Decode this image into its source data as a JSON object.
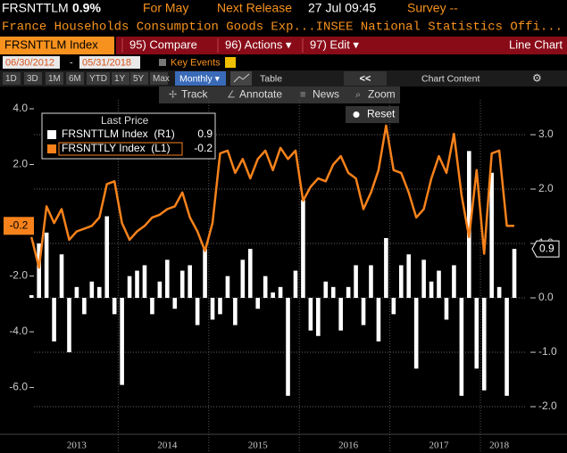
{
  "header": {
    "ticker": "FRSNTTLM",
    "change": "0.9%",
    "period": "For May",
    "next_release_label": "Next Release",
    "next_release": "27 Jul 09:45",
    "survey": "Survey --",
    "description": "France Households Consumption Goods Exp...INSEE National Statistics Offi..."
  },
  "menu": {
    "security": "FRSNTTLM Index",
    "items": [
      "95) Compare",
      "96) Actions ▾",
      "97) Edit ▾"
    ],
    "view": "Line Chart"
  },
  "range": {
    "start": "06/30/2012",
    "separator": "-",
    "end": "05/31/2018",
    "key_events": "Key Events"
  },
  "periods": [
    "1D",
    "3D",
    "1M",
    "6M",
    "YTD",
    "1Y",
    "5Y",
    "Max"
  ],
  "frequency": "Monthly ▾",
  "table": "Table",
  "collapse": "<<",
  "chart_content": "Chart Content",
  "tools": [
    "Track",
    "Annotate",
    "News",
    "Zoom"
  ],
  "reset": "Reset",
  "chart_data": {
    "type": "combo",
    "legend_title": "Last Price",
    "categories": [
      null,
      null,
      null,
      null,
      null,
      null,
      "2013",
      null,
      null,
      null,
      null,
      null,
      null,
      null,
      null,
      null,
      null,
      null,
      "2014",
      null,
      null,
      null,
      null,
      null,
      null,
      null,
      null,
      null,
      null,
      null,
      "2015",
      null,
      null,
      null,
      null,
      null,
      null,
      null,
      null,
      null,
      null,
      null,
      "2016",
      null,
      null,
      null,
      null,
      null,
      null,
      null,
      null,
      null,
      null,
      null,
      "2017",
      null,
      null,
      null,
      null,
      null,
      null,
      null,
      "2018",
      null,
      null
    ],
    "series": [
      {
        "name": "FRSNTTLM Index  (R1)",
        "type": "bar",
        "axis": "y2",
        "color": "#ffffff",
        "last_label": "0.9",
        "values": [
          0.05,
          1.0,
          1.2,
          -0.8,
          0.8,
          -1.0,
          0.2,
          -0.3,
          0.3,
          0.2,
          1.5,
          -0.3,
          -1.6,
          0.4,
          0.5,
          0.6,
          -0.3,
          0.3,
          0.7,
          -0.2,
          0.5,
          0.6,
          -0.5,
          0.9,
          -0.4,
          -0.3,
          0.4,
          -0.5,
          0.7,
          0.9,
          -0.2,
          0.4,
          0.1,
          0.2,
          -1.8,
          0.5,
          1.8,
          -0.6,
          -0.7,
          0.3,
          0.2,
          -0.6,
          0.2,
          0.6,
          -0.5,
          0.6,
          -0.8,
          1.1,
          -0.3,
          0.6,
          0.8,
          -1.3,
          0.7,
          0.3,
          0.5,
          -0.4,
          0.6,
          -1.8,
          2.7,
          -1.3,
          -1.7,
          2.3,
          0.2,
          -1.8,
          0.9
        ]
      },
      {
        "name": "FRSNTTLY Index  (L1)",
        "type": "line",
        "color": "#f7821b",
        "last_label": "-0.2",
        "values": [
          -0.6,
          -1.7,
          0.5,
          -0.1,
          0.4,
          -0.7,
          -0.4,
          -0.3,
          -0.2,
          0.1,
          1.3,
          1.4,
          -0.1,
          -0.7,
          -0.4,
          -0.2,
          0.1,
          0.2,
          0.4,
          0.5,
          1.0,
          0.1,
          -0.4,
          -1.1,
          -0.1,
          2.4,
          2.5,
          1.7,
          2.2,
          1.5,
          2.2,
          2.5,
          1.8,
          2.6,
          2.2,
          2.5,
          0.7,
          1.2,
          1.5,
          1.4,
          2.0,
          2.3,
          1.7,
          1.5,
          0.4,
          1.0,
          1.8,
          3.4,
          1.8,
          1.7,
          1.0,
          0.1,
          0.4,
          1.5,
          2.3,
          1.7,
          3.1,
          0.9,
          -0.6,
          1.8,
          -1.2,
          2.4,
          2.5,
          -0.2,
          -0.2
        ]
      }
    ],
    "ylim": [
      -7.39,
      4.32
    ],
    "yticks": [
      {
        "value": 4,
        "label": "4.0"
      },
      {
        "value": 2,
        "label": "2.0"
      },
      {
        "value": -2,
        "label": "-2.0"
      },
      {
        "value": -4,
        "label": "-4.0"
      },
      {
        "value": -6,
        "label": "-6.0"
      }
    ],
    "y2lim": [
      -2.36,
      3.64
    ],
    "y2ticks": [
      {
        "value": 3,
        "label": "3.0"
      },
      {
        "value": 2,
        "label": "2.0"
      },
      {
        "value": 1,
        "label": "1.0"
      },
      {
        "value": 0,
        "label": "0.0"
      },
      {
        "value": -1,
        "label": "-1.0"
      },
      {
        "value": -2,
        "label": "-2.0"
      }
    ],
    "grid": "y2"
  }
}
